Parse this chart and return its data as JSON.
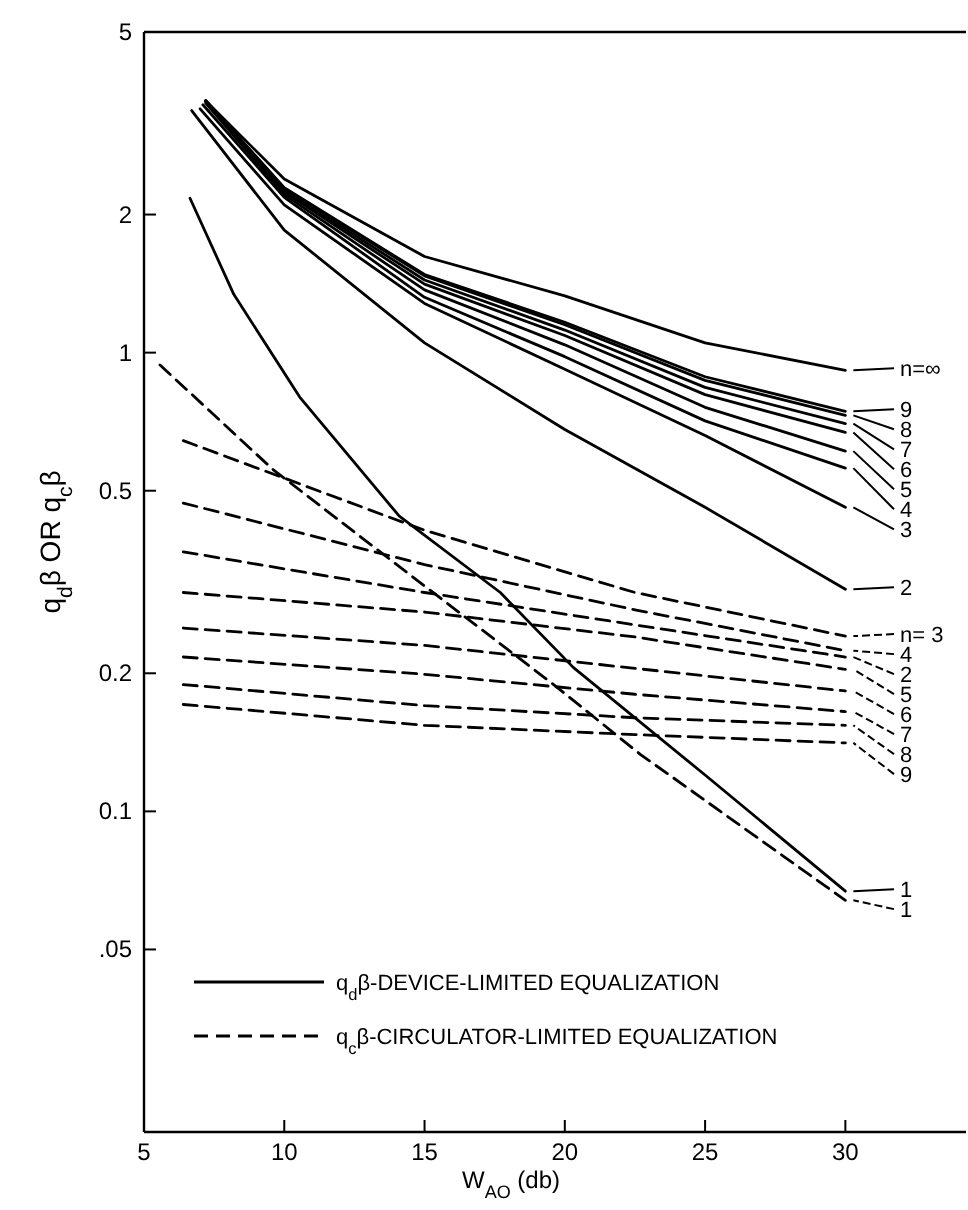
{
  "chart_data": {
    "type": "line",
    "xlabel": "W$_{AO}$ (db)",
    "ylabel": "q$_{d}$β OR q$_{c}$β",
    "log": "y",
    "xlim": [
      5,
      34.3
    ],
    "ylim": [
      0.02,
      5
    ],
    "xticks": [
      5,
      10,
      15,
      20,
      25,
      30
    ],
    "yticks": [
      {
        "value": 0.05,
        "label": ".05"
      },
      0.1,
      0.2,
      0.5,
      1,
      2,
      5
    ],
    "grid": false,
    "legend": "right",
    "series": [
      {
        "name": "n=∞",
        "color": "#000000",
        "line_style": "solid",
        "x": [
          7.2,
          10,
          15,
          20,
          25,
          30
        ],
        "values": [
          3.54,
          2.39,
          1.62,
          1.33,
          1.05,
          0.915
        ]
      },
      {
        "name": "9",
        "color": "#000000",
        "line_style": "solid",
        "x": [
          7.2,
          10,
          15,
          20,
          25,
          30
        ],
        "values": [
          3.54,
          2.29,
          1.48,
          1.165,
          0.886,
          0.745
        ]
      },
      {
        "name": "8",
        "color": "#000000",
        "line_style": "solid",
        "x": [
          7.2,
          10,
          15,
          20,
          25,
          30
        ],
        "values": [
          3.54,
          2.28,
          1.47,
          1.15,
          0.87,
          0.73
        ]
      },
      {
        "name": "7",
        "color": "#000000",
        "line_style": "solid",
        "x": [
          7.2,
          10,
          15,
          20,
          25,
          30
        ],
        "values": [
          3.54,
          2.26,
          1.44,
          1.12,
          0.84,
          0.7
        ]
      },
      {
        "name": "6",
        "color": "#000000",
        "line_style": "solid",
        "x": [
          7.2,
          10,
          15,
          20,
          25,
          30
        ],
        "values": [
          3.52,
          2.24,
          1.41,
          1.09,
          0.81,
          0.67
        ]
      },
      {
        "name": "5",
        "color": "#000000",
        "line_style": "solid",
        "x": [
          7.2,
          10,
          15,
          20,
          25,
          30
        ],
        "values": [
          3.5,
          2.21,
          1.37,
          1.04,
          0.76,
          0.61
        ]
      },
      {
        "name": "4",
        "color": "#000000",
        "line_style": "solid",
        "x": [
          7.1,
          10,
          15,
          20,
          25,
          30
        ],
        "values": [
          3.47,
          2.18,
          1.32,
          0.98,
          0.71,
          0.56
        ]
      },
      {
        "name": "3",
        "color": "#000000",
        "line_style": "solid",
        "x": [
          7,
          10,
          15,
          20,
          25,
          30
        ],
        "values": [
          3.4,
          2.1,
          1.28,
          0.92,
          0.66,
          0.46
        ]
      },
      {
        "name": "2",
        "color": "#000000",
        "line_style": "solid",
        "x": [
          6.7,
          10,
          15,
          20,
          25,
          30
        ],
        "values": [
          3.37,
          1.85,
          1.05,
          0.68,
          0.46,
          0.305
        ]
      },
      {
        "name": "1",
        "color": "#000000",
        "line_style": "solid",
        "x": [
          6.64,
          8.2,
          10.55,
          14.1,
          17.7,
          20.3,
          25,
          30
        ],
        "values": [
          2.17,
          1.34,
          0.8,
          0.44,
          0.3,
          0.206,
          0.12,
          0.067
        ]
      },
      {
        "name": "n= 3",
        "color": "#000000",
        "line_style": "dashed",
        "x": [
          6.4,
          15,
          22.5,
          30
        ],
        "values": [
          0.643,
          0.41,
          0.3,
          0.241
        ]
      },
      {
        "name": "4",
        "color": "#000000",
        "line_style": "dashed",
        "x": [
          6.4,
          15,
          22.5,
          30
        ],
        "values": [
          0.47,
          0.345,
          0.275,
          0.224
        ]
      },
      {
        "name": "2",
        "color": "#000000",
        "line_style": "dashed",
        "x": [
          6.4,
          15,
          22.5,
          30
        ],
        "values": [
          0.368,
          0.3,
          0.255,
          0.217
        ]
      },
      {
        "name": "5",
        "color": "#000000",
        "line_style": "dashed",
        "x": [
          6.4,
          15,
          22.5,
          30
        ],
        "values": [
          0.3,
          0.272,
          0.24,
          0.204
        ]
      },
      {
        "name": "6",
        "color": "#000000",
        "line_style": "dashed",
        "x": [
          6.4,
          15,
          22.5,
          30
        ],
        "values": [
          0.251,
          0.23,
          0.205,
          0.183
        ]
      },
      {
        "name": "7",
        "color": "#000000",
        "line_style": "dashed",
        "x": [
          6.4,
          15,
          22.5,
          30
        ],
        "values": [
          0.217,
          0.199,
          0.18,
          0.165
        ]
      },
      {
        "name": "8",
        "color": "#000000",
        "line_style": "dashed",
        "x": [
          6.4,
          15,
          22.5,
          30
        ],
        "values": [
          0.189,
          0.17,
          0.16,
          0.154
        ]
      },
      {
        "name": "9",
        "color": "#000000",
        "line_style": "dashed",
        "x": [
          6.4,
          15,
          22.5,
          30
        ],
        "values": [
          0.171,
          0.154,
          0.147,
          0.141
        ]
      },
      {
        "name": "1",
        "color": "#000000",
        "line_style": "dashed",
        "x": [
          5.57,
          9.6,
          15,
          19.6,
          22.7,
          30
        ],
        "values": [
          0.94,
          0.556,
          0.31,
          0.189,
          0.133,
          0.064
        ]
      }
    ],
    "annotations": [
      "q$_{d}$β-DEVICE-LIMITED EQUALIZATION",
      "q$_{c}$β-CIRCULATOR-LIMITED EQUALIZATION"
    ]
  }
}
